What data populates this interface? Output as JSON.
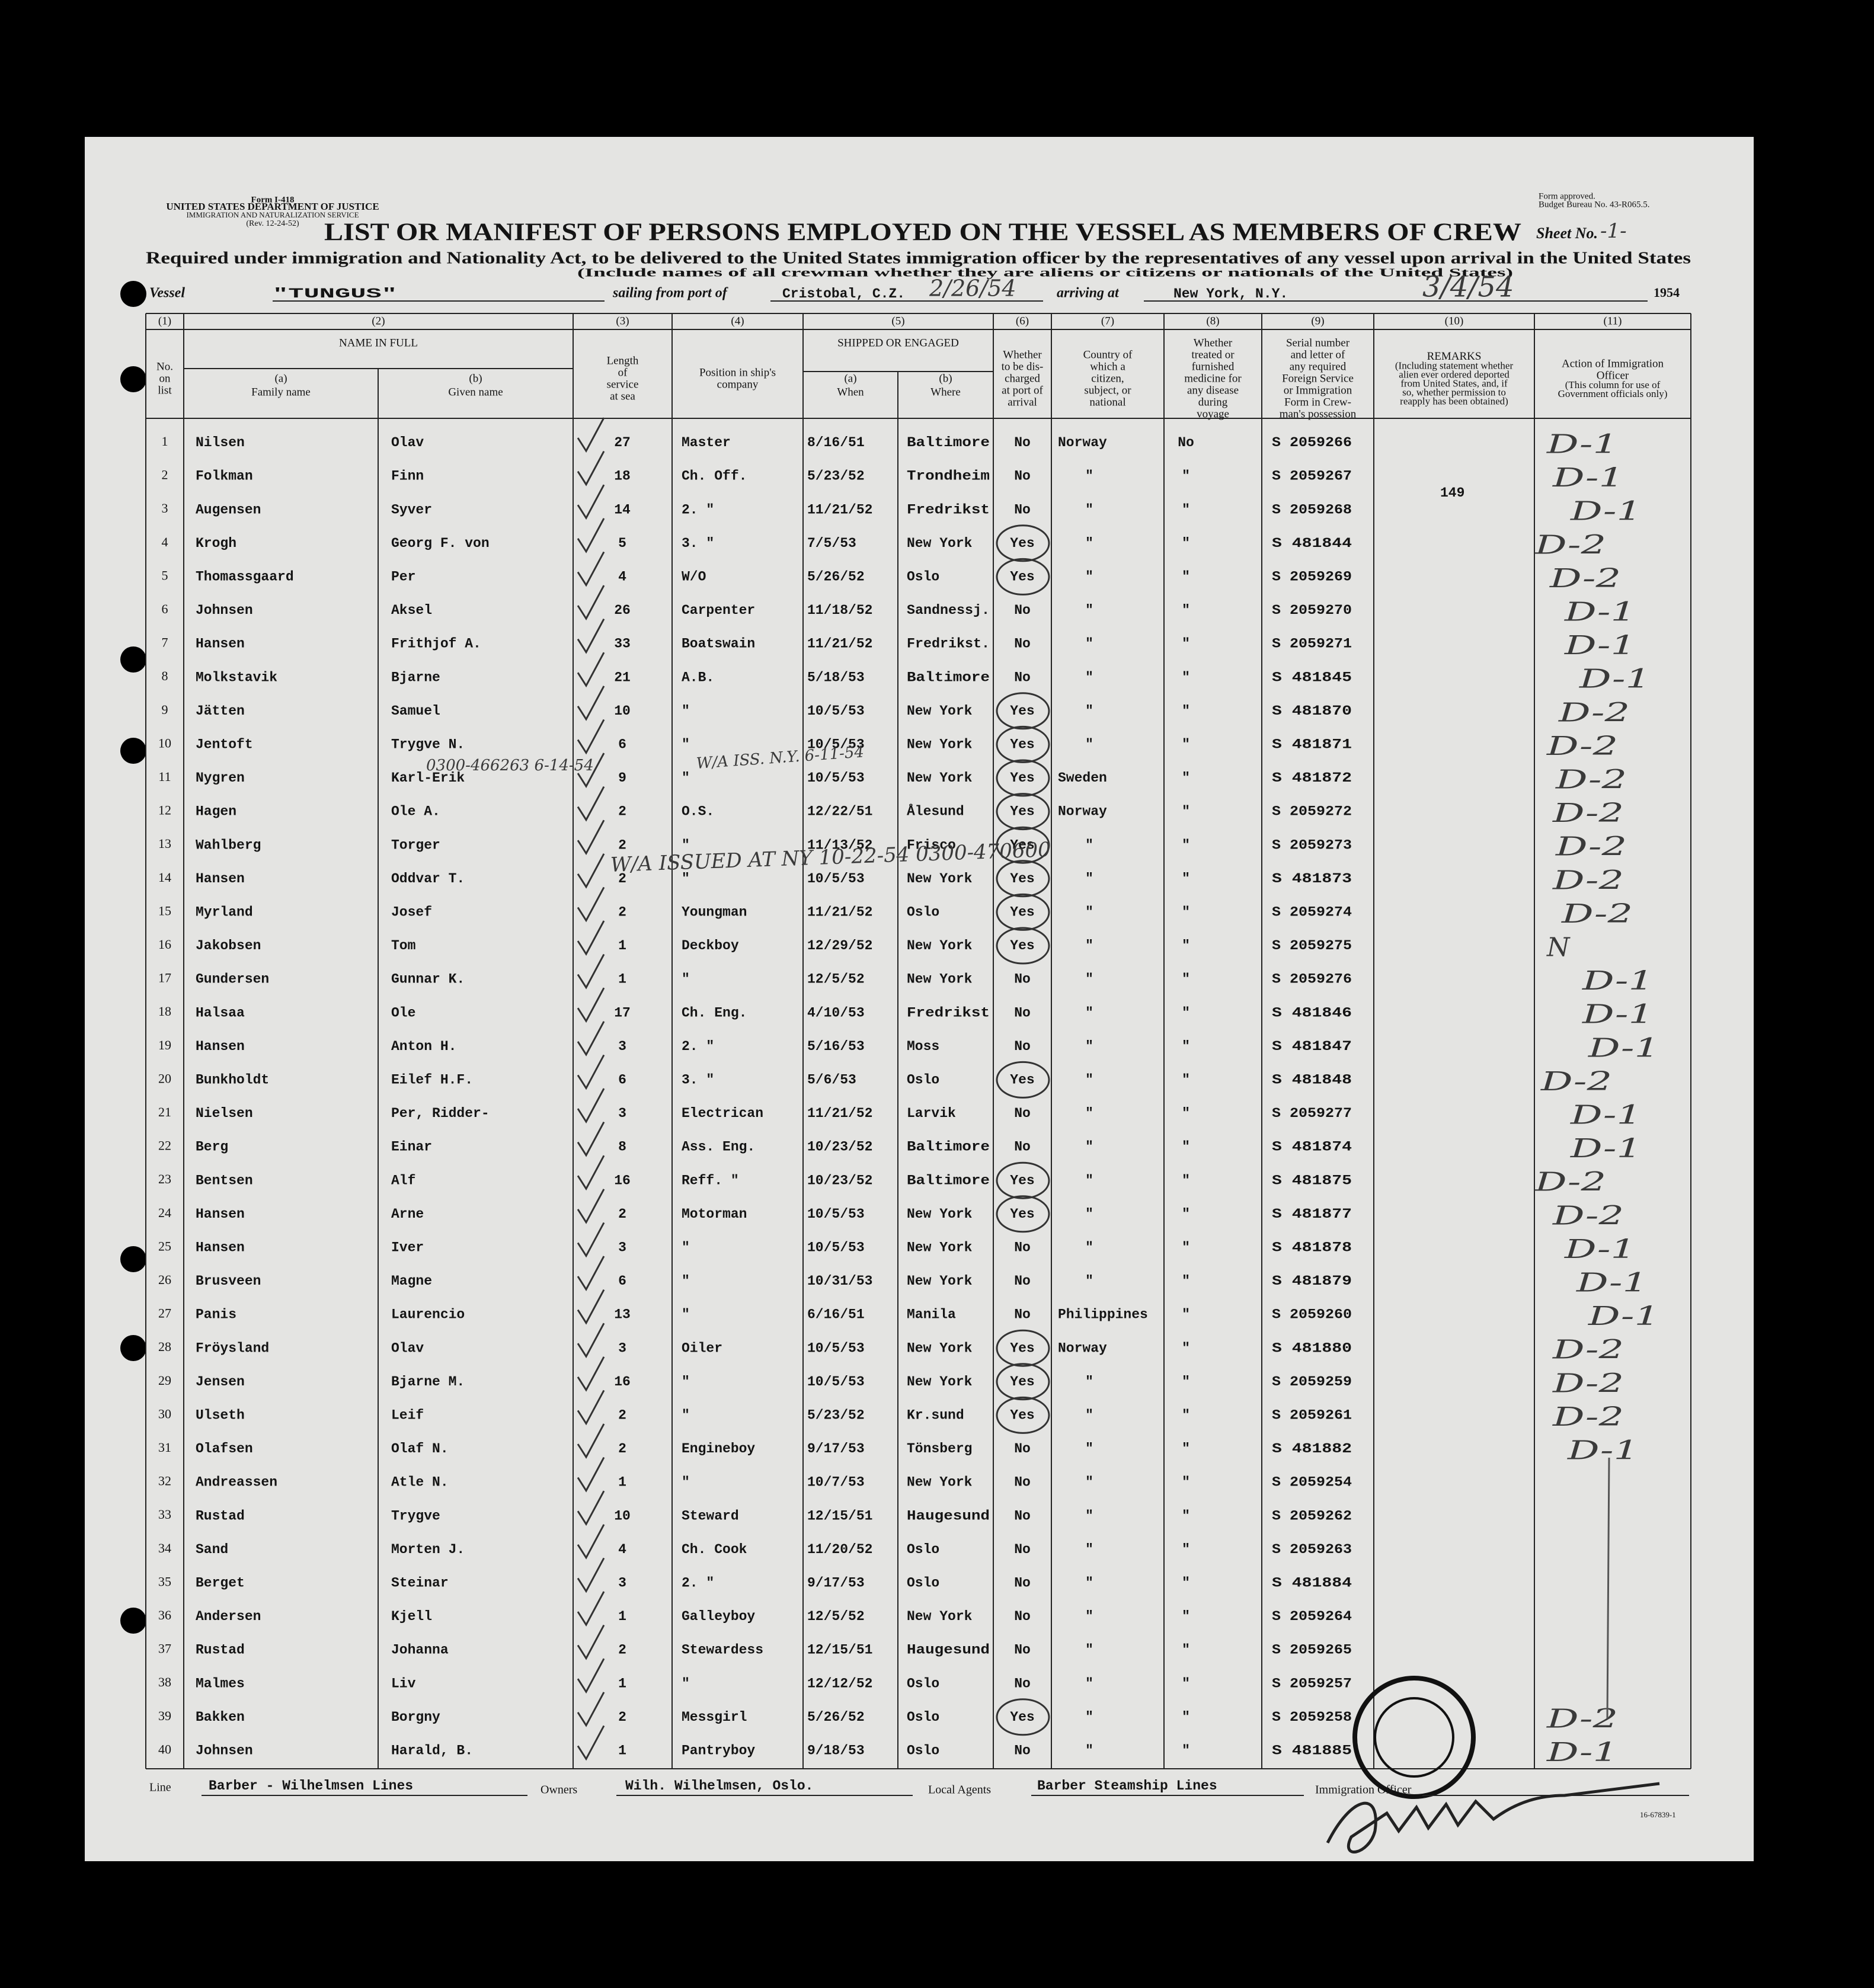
{
  "header": {
    "form": "Form I-418",
    "department": "UNITED STATES DEPARTMENT OF JUSTICE",
    "service": "IMMIGRATION AND NATURALIZATION SERVICE",
    "revision": "(Rev. 12-24-52)",
    "approval": "Form approved.",
    "budget": "Budget Bureau No. 43-R065.5.",
    "title": "LIST OR MANIFEST OF PERSONS EMPLOYED ON THE VESSEL AS MEMBERS OF CREW",
    "sheet_label": "Sheet No.",
    "sheet_no": "-1-",
    "subtitle": "Required under immigration and Nationality Act, to be delivered to the United States immigration officer by the representatives of any vessel upon arrival in the United States",
    "note": "(Include names of all crewman whether they are aliens or citizens or nationals of the United States)"
  },
  "voyage": {
    "vessel_label": "Vessel",
    "vessel": "\"TUNGUS\"",
    "sailing_label": "sailing from port of",
    "port": "Cristobal, C.Z.",
    "sailing_date": "2/26/54",
    "arriving_label": "arriving at",
    "arrival_port": "New York, N.Y.",
    "arrival_date": "3/4/54",
    "year": "1954"
  },
  "table": {
    "columns": [
      {
        "number": "(1)",
        "label": [
          "No.",
          "on",
          "list"
        ]
      },
      {
        "number": "(2)",
        "label": [
          "NAME IN FULL"
        ],
        "sub": [
          {
            "letter": "(a)",
            "label": "Family name"
          },
          {
            "letter": "(b)",
            "label": "Given name"
          }
        ]
      },
      {
        "number": "(3)",
        "label": [
          "Length",
          "of",
          "service",
          "at sea"
        ]
      },
      {
        "number": "(4)",
        "label": [
          "Position in ship's",
          "company"
        ]
      },
      {
        "number": "(5)",
        "label": [
          "SHIPPED OR ENGAGED"
        ],
        "sub": [
          {
            "letter": "(a)",
            "label": "When"
          },
          {
            "letter": "(b)",
            "label": "Where"
          }
        ]
      },
      {
        "number": "(6)",
        "label": [
          "Whether",
          "to be dis-",
          "charged",
          "at port of",
          "arrival"
        ]
      },
      {
        "number": "(7)",
        "label": [
          "Country of",
          "which a",
          "citizen,",
          "subject, or",
          "national"
        ]
      },
      {
        "number": "(8)",
        "label": [
          "Whether",
          "treated or",
          "furnished",
          "medicine for",
          "any disease",
          "during",
          "voyage"
        ]
      },
      {
        "number": "(9)",
        "label": [
          "Serial number",
          "and letter of",
          "any required",
          "Foreign Service",
          "or Immigration",
          "Form in Crew-",
          "man's possession"
        ]
      },
      {
        "number": "(10)",
        "label": [
          "REMARKS"
        ],
        "note": [
          "(Including statement whether",
          "alien ever ordered deported",
          "from United States, and, if",
          "so, whether permission to",
          "reapply has been obtained)"
        ]
      },
      {
        "number": "(11)",
        "label": [
          "Action of Immigration",
          "Officer"
        ],
        "note": [
          "(This column for use of",
          "Government officials only)"
        ]
      }
    ],
    "rows": [
      {
        "no": 1,
        "family": "Nilsen",
        "given": "Olav",
        "service": 27,
        "position": "Master",
        "when": "8/16/51",
        "where": "Baltimore",
        "discharge": "No",
        "country": "Norway",
        "treated": "No",
        "serial": "S 2059266",
        "action": "D-1"
      },
      {
        "no": 2,
        "family": "Folkman",
        "given": "Finn",
        "service": 18,
        "position": "Ch. Off.",
        "when": "5/23/52",
        "where": "Trondheim",
        "discharge": "No",
        "country": "\"",
        "treated": "\"",
        "serial": "S 2059267",
        "action": "D-1"
      },
      {
        "no": 3,
        "family": "Augensen",
        "given": "Syver",
        "service": 14,
        "position": "2. \"",
        "when": "11/21/52",
        "where": "Fredrikst",
        "discharge": "No",
        "country": "\"",
        "treated": "\"",
        "serial": "S 2059268",
        "action": "D-1"
      },
      {
        "no": 4,
        "family": "Krogh",
        "given": "Georg F. von",
        "service": 5,
        "position": "3. \"",
        "when": "7/5/53",
        "where": "New York",
        "discharge": "Yes",
        "country": "\"",
        "treated": "\"",
        "serial": "S 481844",
        "action": "D-2"
      },
      {
        "no": 5,
        "family": "Thomassgaard",
        "given": "Per",
        "service": 4,
        "position": "W/O",
        "when": "5/26/52",
        "where": "Oslo",
        "discharge": "Yes",
        "country": "\"",
        "treated": "\"",
        "serial": "S 2059269",
        "action": "D-2"
      },
      {
        "no": 6,
        "family": "Johnsen",
        "given": "Aksel",
        "service": 26,
        "position": "Carpenter",
        "when": "11/18/52",
        "where": "Sandnessj.",
        "discharge": "No",
        "country": "\"",
        "treated": "\"",
        "serial": "S 2059270",
        "action": "D-1"
      },
      {
        "no": 7,
        "family": "Hansen",
        "given": "Frithjof A.",
        "service": 33,
        "position": "Boatswain",
        "when": "11/21/52",
        "where": "Fredrikst.",
        "discharge": "No",
        "country": "\"",
        "treated": "\"",
        "serial": "S 2059271",
        "action": "D-1"
      },
      {
        "no": 8,
        "family": "Molkstavik",
        "given": "Bjarne",
        "service": 21,
        "position": "A.B.",
        "when": "5/18/53",
        "where": "Baltimore",
        "discharge": "No",
        "country": "\"",
        "treated": "\"",
        "serial": "S 481845",
        "action": "D-1"
      },
      {
        "no": 9,
        "family": "Jätten",
        "given": "Samuel",
        "service": 10,
        "position": "\"",
        "when": "10/5/53",
        "where": "New York",
        "discharge": "Yes",
        "country": "\"",
        "treated": "\"",
        "serial": "S 481870",
        "action": "D-2"
      },
      {
        "no": 10,
        "family": "Jentoft",
        "given": "Trygve N.",
        "service": 6,
        "position": "\"",
        "when": "10/5/53",
        "where": "New York",
        "discharge": "Yes",
        "country": "\"",
        "treated": "\"",
        "serial": "S 481871",
        "action": "D-2"
      },
      {
        "no": 11,
        "family": "Nygren",
        "given": "Karl-Erik",
        "service": 9,
        "position": "\"",
        "when": "10/5/53",
        "where": "New York",
        "discharge": "Yes",
        "country": "Sweden",
        "treated": "\"",
        "serial": "S 481872",
        "action": "D-2"
      },
      {
        "no": 12,
        "family": "Hagen",
        "given": "Ole A.",
        "service": 2,
        "position": "O.S.",
        "when": "12/22/51",
        "where": "Ålesund",
        "discharge": "Yes",
        "country": "Norway",
        "treated": "\"",
        "serial": "S 2059272",
        "action": "D-2"
      },
      {
        "no": 13,
        "family": "Wahlberg",
        "given": "Torger",
        "service": 2,
        "position": "\"",
        "when": "11/13/52",
        "where": "Frisco",
        "discharge": "Yes",
        "country": "\"",
        "treated": "\"",
        "serial": "S 2059273",
        "action": "D-2"
      },
      {
        "no": 14,
        "family": "Hansen",
        "given": "Oddvar T.",
        "service": 2,
        "position": "\"",
        "when": "10/5/53",
        "where": "New York",
        "discharge": "Yes",
        "country": "\"",
        "treated": "\"",
        "serial": "S 481873",
        "action": "D-2"
      },
      {
        "no": 15,
        "family": "Myrland",
        "given": "Josef",
        "service": 2,
        "position": "Youngman",
        "when": "11/21/52",
        "where": "Oslo",
        "discharge": "Yes",
        "country": "\"",
        "treated": "\"",
        "serial": "S 2059274",
        "action": "D-2"
      },
      {
        "no": 16,
        "family": "Jakobsen",
        "given": "Tom",
        "service": 1,
        "position": "Deckboy",
        "when": "12/29/52",
        "where": "New York",
        "discharge": "Yes",
        "country": "\"",
        "treated": "\"",
        "serial": "S 2059275",
        "action": "N"
      },
      {
        "no": 17,
        "family": "Gundersen",
        "given": "Gunnar K.",
        "service": 1,
        "position": "\"",
        "when": "12/5/52",
        "where": "New York",
        "discharge": "No",
        "country": "\"",
        "treated": "\"",
        "serial": "S 2059276",
        "action": "D-1"
      },
      {
        "no": 18,
        "family": "Halsaa",
        "given": "Ole",
        "service": 17,
        "position": "Ch. Eng.",
        "when": "4/10/53",
        "where": "Fredrikst",
        "discharge": "No",
        "country": "\"",
        "treated": "\"",
        "serial": "S 481846",
        "action": "D-1"
      },
      {
        "no": 19,
        "family": "Hansen",
        "given": "Anton H.",
        "service": 3,
        "position": "2. \"",
        "when": "5/16/53",
        "where": "Moss",
        "discharge": "No",
        "country": "\"",
        "treated": "\"",
        "serial": "S 481847",
        "action": "D-1"
      },
      {
        "no": 20,
        "family": "Bunkholdt",
        "given": "Eilef H.F.",
        "service": 6,
        "position": "3. \"",
        "when": "5/6/53",
        "where": "Oslo",
        "discharge": "Yes",
        "country": "\"",
        "treated": "\"",
        "serial": "S 481848",
        "action": "D-2"
      },
      {
        "no": 21,
        "family": "Nielsen",
        "given": "Per, Ridder-",
        "service": 3,
        "position": "Electrican",
        "when": "11/21/52",
        "where": "Larvik",
        "discharge": "No",
        "country": "\"",
        "treated": "\"",
        "serial": "S 2059277",
        "action": "D-1"
      },
      {
        "no": 22,
        "family": "Berg",
        "given": "Einar",
        "service": 8,
        "position": "Ass. Eng.",
        "when": "10/23/52",
        "where": "Baltimore",
        "discharge": "No",
        "country": "\"",
        "treated": "\"",
        "serial": "S 481874",
        "action": "D-1"
      },
      {
        "no": 23,
        "family": "Bentsen",
        "given": "Alf",
        "service": 16,
        "position": "Reff. \"",
        "when": "10/23/52",
        "where": "Baltimore",
        "discharge": "Yes",
        "country": "\"",
        "treated": "\"",
        "serial": "S 481875",
        "action": "D-2"
      },
      {
        "no": 24,
        "family": "Hansen",
        "given": "Arne",
        "service": 2,
        "position": "Motorman",
        "when": "10/5/53",
        "where": "New York",
        "discharge": "Yes",
        "country": "\"",
        "treated": "\"",
        "serial": "S 481877",
        "action": "D-2"
      },
      {
        "no": 25,
        "family": "Hansen",
        "given": "Iver",
        "service": 3,
        "position": "\"",
        "when": "10/5/53",
        "where": "New York",
        "discharge": "No",
        "country": "\"",
        "treated": "\"",
        "serial": "S 481878",
        "action": "D-1"
      },
      {
        "no": 26,
        "family": "Brusveen",
        "given": "Magne",
        "service": 6,
        "position": "\"",
        "when": "10/31/53",
        "where": "New York",
        "discharge": "No",
        "country": "\"",
        "treated": "\"",
        "serial": "S 481879",
        "action": "D-1"
      },
      {
        "no": 27,
        "family": "Panis",
        "given": "Laurencio",
        "service": 13,
        "position": "\"",
        "when": "6/16/51",
        "where": "Manila",
        "discharge": "No",
        "country": "Philippines",
        "treated": "\"",
        "serial": "S 2059260",
        "action": "D-1"
      },
      {
        "no": 28,
        "family": "Fröysland",
        "given": "Olav",
        "service": 3,
        "position": "Oiler",
        "when": "10/5/53",
        "where": "New York",
        "discharge": "Yes",
        "country": "Norway",
        "treated": "\"",
        "serial": "S 481880",
        "action": "D-2"
      },
      {
        "no": 29,
        "family": "Jensen",
        "given": "Bjarne M.",
        "service": 16,
        "position": "\"",
        "when": "10/5/53",
        "where": "New York",
        "discharge": "Yes",
        "country": "\"",
        "treated": "\"",
        "serial": "S 2059259",
        "action": "D-2"
      },
      {
        "no": 30,
        "family": "Ulseth",
        "given": "Leif",
        "service": 2,
        "position": "\"",
        "when": "5/23/52",
        "where": "Kr.sund",
        "discharge": "Yes",
        "country": "\"",
        "treated": "\"",
        "serial": "S 2059261",
        "action": "D-2"
      },
      {
        "no": 31,
        "family": "Olafsen",
        "given": "Olaf N.",
        "service": 2,
        "position": "Engineboy",
        "when": "9/17/53",
        "where": "Tönsberg",
        "discharge": "No",
        "country": "\"",
        "treated": "\"",
        "serial": "S 481882",
        "action": "D-1"
      },
      {
        "no": 32,
        "family": "Andreassen",
        "given": "Atle N.",
        "service": 1,
        "position": "\"",
        "when": "10/7/53",
        "where": "New York",
        "discharge": "No",
        "country": "\"",
        "treated": "\"",
        "serial": "S 2059254"
      },
      {
        "no": 33,
        "family": "Rustad",
        "given": "Trygve",
        "service": 10,
        "position": "Steward",
        "when": "12/15/51",
        "where": "Haugesund",
        "discharge": "No",
        "country": "\"",
        "treated": "\"",
        "serial": "S 2059262"
      },
      {
        "no": 34,
        "family": "Sand",
        "given": "Morten J.",
        "service": 4,
        "position": "Ch. Cook",
        "when": "11/20/52",
        "where": "Oslo",
        "discharge": "No",
        "country": "\"",
        "treated": "\"",
        "serial": "S 2059263"
      },
      {
        "no": 35,
        "family": "Berget",
        "given": "Steinar",
        "service": 3,
        "position": "2. \"",
        "when": "9/17/53",
        "where": "Oslo",
        "discharge": "No",
        "country": "\"",
        "treated": "\"",
        "serial": "S 481884"
      },
      {
        "no": 36,
        "family": "Andersen",
        "given": "Kjell",
        "service": 1,
        "position": "Galleyboy",
        "when": "12/5/52",
        "where": "New York",
        "discharge": "No",
        "country": "\"",
        "treated": "\"",
        "serial": "S 2059264"
      },
      {
        "no": 37,
        "family": "Rustad",
        "given": "Johanna",
        "service": 2,
        "position": "Stewardess",
        "when": "12/15/51",
        "where": "Haugesund",
        "discharge": "No",
        "country": "\"",
        "treated": "\"",
        "serial": "S 2059265"
      },
      {
        "no": 38,
        "family": "Malmes",
        "given": "Liv",
        "service": 1,
        "position": "\"",
        "when": "12/12/52",
        "where": "Oslo",
        "discharge": "No",
        "country": "\"",
        "treated": "\"",
        "serial": "S 2059257"
      },
      {
        "no": 39,
        "family": "Bakken",
        "given": "Borgny",
        "service": 2,
        "position": "Messgirl",
        "when": "5/26/52",
        "where": "Oslo",
        "discharge": "Yes",
        "country": "\"",
        "treated": "\"",
        "serial": "S 2059258",
        "action": "D-2"
      },
      {
        "no": 40,
        "family": "Johnsen",
        "given": "Harald, B.",
        "service": 1,
        "position": "Pantryboy",
        "when": "9/18/53",
        "where": "Oslo",
        "discharge": "No",
        "country": "\"",
        "treated": "\"",
        "serial": "S 481885",
        "action": "D-1"
      }
    ]
  },
  "annotations": [
    "0300-466263 6-14-54",
    "W/A ISS. N.Y. 6-11-54",
    "W/A ISSUED AT NY 10-22-54 0300-470600",
    "149"
  ],
  "footer": {
    "line_label": "Line",
    "line": "Barber - Wilhelmsen Lines",
    "owners_label": "Owners",
    "owners": "Wilh. Wilhelmsen, Oslo.",
    "agents_label": "Local Agents",
    "agents": "Barber Steamship Lines",
    "officer_label": "Immigration Officer",
    "form_number": "16-67839-1"
  }
}
